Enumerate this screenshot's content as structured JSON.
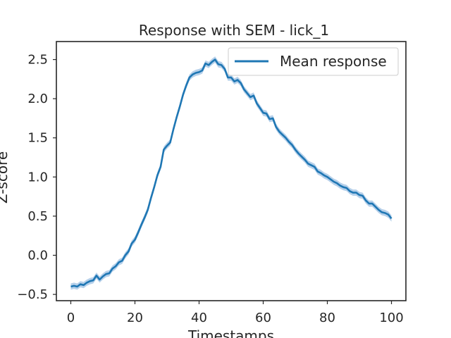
{
  "chart_data": {
    "type": "line",
    "title": "Response with SEM - lick_1",
    "xlabel": "Timestamps",
    "ylabel": "Z-score",
    "xlim": [
      -4.5,
      104.5
    ],
    "ylim": [
      -0.58,
      2.73
    ],
    "xticks": [
      0,
      20,
      40,
      60,
      80,
      100
    ],
    "yticks": [
      -0.5,
      0.0,
      0.5,
      1.0,
      1.5,
      2.0,
      2.5
    ],
    "xtick_labels": [
      "0",
      "20",
      "40",
      "60",
      "80",
      "100"
    ],
    "ytick_labels": [
      "−0.5",
      "0.0",
      "0.5",
      "1.0",
      "1.5",
      "2.0",
      "2.5"
    ],
    "grid": false,
    "legend": {
      "position": "top-right"
    },
    "colors": {
      "line": "#1f77b4",
      "band": "#a9c8e6",
      "axes": "#262626"
    },
    "series": [
      {
        "name": "Mean response",
        "x": [
          0,
          1,
          2,
          3,
          4,
          5,
          6,
          7,
          8,
          9,
          10,
          11,
          12,
          13,
          14,
          15,
          16,
          17,
          18,
          19,
          20,
          21,
          22,
          23,
          24,
          25,
          26,
          27,
          28,
          29,
          30,
          31,
          32,
          33,
          34,
          35,
          36,
          37,
          38,
          39,
          40,
          41,
          42,
          43,
          44,
          45,
          46,
          47,
          48,
          49,
          50,
          51,
          52,
          53,
          54,
          55,
          56,
          57,
          58,
          59,
          60,
          61,
          62,
          63,
          64,
          65,
          66,
          67,
          68,
          69,
          70,
          71,
          72,
          73,
          74,
          75,
          76,
          77,
          78,
          79,
          80,
          81,
          82,
          83,
          84,
          85,
          86,
          87,
          88,
          89,
          90,
          91,
          92,
          93,
          94,
          95,
          96,
          97,
          98,
          99,
          100
        ],
        "values": [
          -0.4,
          -0.39,
          -0.4,
          -0.37,
          -0.38,
          -0.35,
          -0.33,
          -0.32,
          -0.26,
          -0.31,
          -0.27,
          -0.24,
          -0.23,
          -0.17,
          -0.14,
          -0.09,
          -0.07,
          0.0,
          0.05,
          0.15,
          0.2,
          0.29,
          0.39,
          0.48,
          0.58,
          0.73,
          0.87,
          1.02,
          1.13,
          1.35,
          1.4,
          1.44,
          1.61,
          1.76,
          1.9,
          2.05,
          2.17,
          2.27,
          2.31,
          2.33,
          2.34,
          2.36,
          2.45,
          2.43,
          2.47,
          2.5,
          2.44,
          2.43,
          2.38,
          2.27,
          2.27,
          2.22,
          2.24,
          2.2,
          2.12,
          2.07,
          2.02,
          2.04,
          1.94,
          1.88,
          1.82,
          1.81,
          1.74,
          1.75,
          1.64,
          1.58,
          1.54,
          1.5,
          1.45,
          1.41,
          1.35,
          1.3,
          1.26,
          1.22,
          1.17,
          1.15,
          1.13,
          1.07,
          1.05,
          1.02,
          1.0,
          0.97,
          0.94,
          0.92,
          0.89,
          0.87,
          0.86,
          0.82,
          0.8,
          0.8,
          0.77,
          0.76,
          0.7,
          0.66,
          0.66,
          0.62,
          0.58,
          0.55,
          0.54,
          0.52,
          0.47
        ]
      }
    ],
    "sem_band": 0.04
  }
}
